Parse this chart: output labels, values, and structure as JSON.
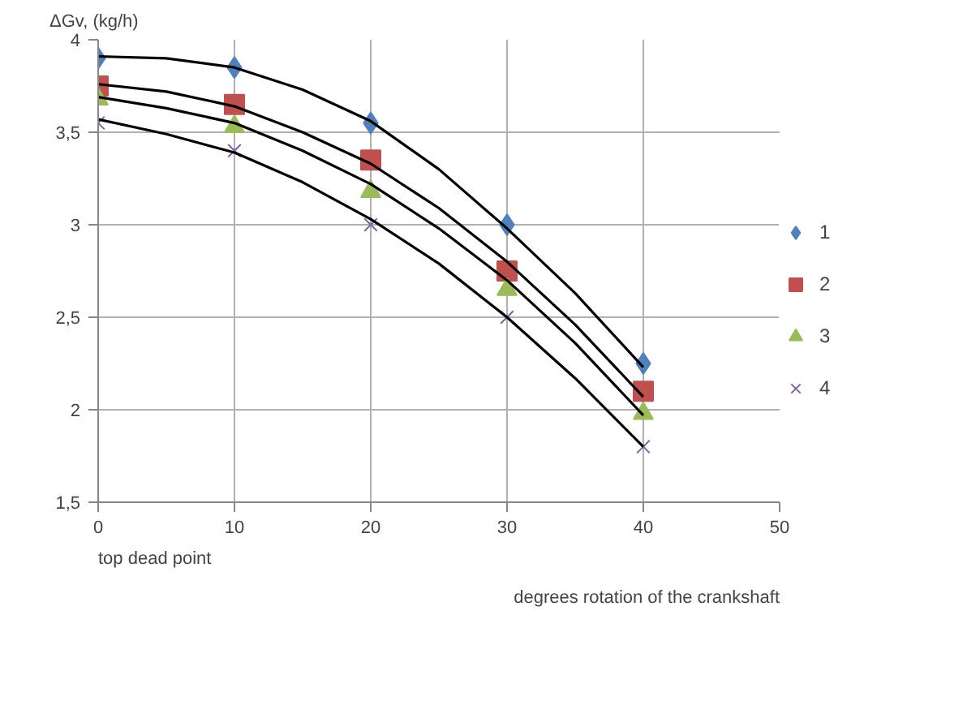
{
  "chart_data": {
    "type": "scatter",
    "xlabel": "degrees rotation of the crankshaft",
    "ylabel": "ΔGv, (kg/h)",
    "x": [
      0,
      10,
      20,
      30,
      40
    ],
    "xlim": [
      0,
      50
    ],
    "xticks": [
      0,
      10,
      20,
      30,
      40,
      50
    ],
    "ylim": [
      1.5,
      4
    ],
    "yticks": [
      {
        "value": 1.5,
        "label": "1,5"
      },
      2,
      {
        "value": 2.5,
        "label": "2,5"
      },
      3,
      {
        "value": 3.5,
        "label": "3,5"
      },
      4
    ],
    "grid": true,
    "legend": "right",
    "annotations": [
      "top dead point"
    ],
    "series": [
      {
        "name": "1",
        "color": "#4f81bd",
        "marker": "diamond",
        "values": [
          3.9,
          3.85,
          3.55,
          3.0,
          2.25
        ]
      },
      {
        "name": "2",
        "color": "#c0504d",
        "marker": "square",
        "values": [
          3.75,
          3.65,
          3.35,
          2.75,
          2.1
        ]
      },
      {
        "name": "3",
        "color": "#9bbb59",
        "marker": "triangle",
        "values": [
          3.68,
          3.53,
          3.18,
          2.65,
          1.98
        ]
      },
      {
        "name": "4",
        "color": "#8064a2",
        "marker": "cross",
        "values": [
          3.55,
          3.4,
          3.0,
          2.5,
          1.8
        ]
      },
      {
        "type": "line",
        "color": "#000000",
        "x": [
          0,
          5,
          10,
          15,
          20,
          25,
          30,
          35,
          40
        ],
        "values": [
          3.91,
          3.9,
          3.85,
          3.73,
          3.56,
          3.3,
          2.98,
          2.63,
          2.23
        ]
      },
      {
        "type": "line",
        "color": "#000000",
        "x": [
          0,
          5,
          10,
          15,
          20,
          25,
          30,
          35,
          40
        ],
        "values": [
          3.76,
          3.72,
          3.64,
          3.5,
          3.33,
          3.09,
          2.8,
          2.46,
          2.07
        ]
      },
      {
        "type": "line",
        "color": "#000000",
        "x": [
          0,
          5,
          10,
          15,
          20,
          25,
          30,
          35,
          40
        ],
        "values": [
          3.69,
          3.63,
          3.55,
          3.4,
          3.22,
          2.98,
          2.7,
          2.36,
          1.97
        ]
      },
      {
        "type": "line",
        "color": "#000000",
        "x": [
          0,
          5,
          10,
          15,
          20,
          25,
          30,
          35,
          40
        ],
        "values": [
          3.57,
          3.49,
          3.39,
          3.23,
          3.03,
          2.79,
          2.5,
          2.17,
          1.8
        ]
      }
    ]
  }
}
